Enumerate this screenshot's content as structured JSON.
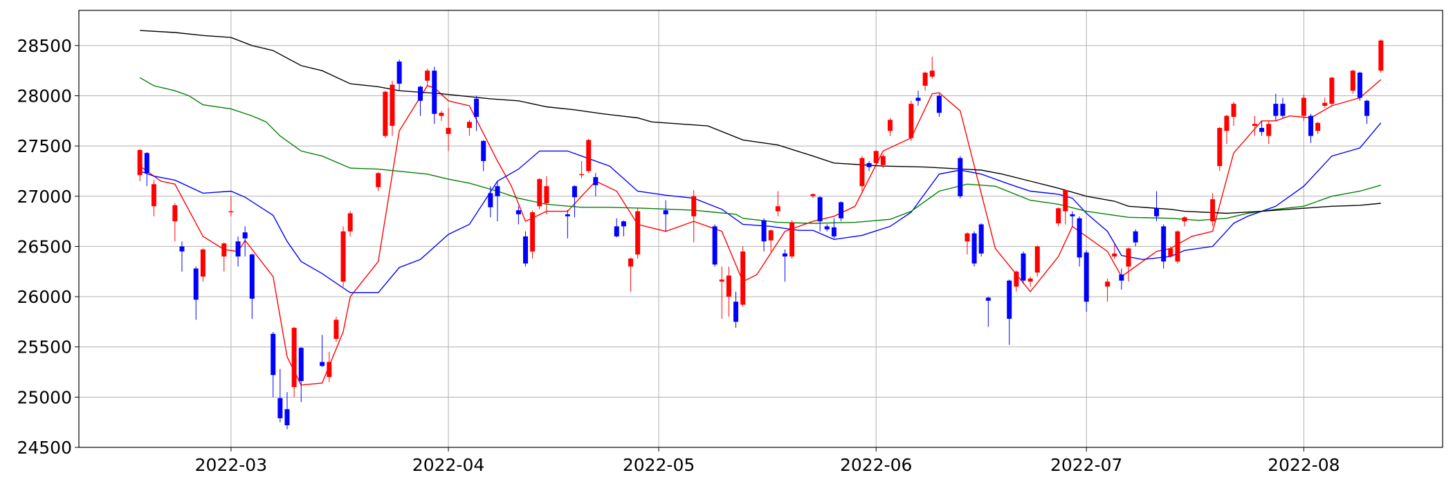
{
  "chart_data": {
    "type": "candlestick",
    "x": [
      47,
      48,
      49,
      52,
      53,
      55,
      56,
      59,
      60,
      61,
      62,
      63,
      66,
      67,
      68,
      69,
      70,
      73,
      74,
      75,
      76,
      77,
      81,
      82,
      83,
      84,
      87,
      88,
      89,
      90,
      91,
      94,
      95,
      96,
      97,
      98,
      101,
      102,
      103,
      104,
      105,
      108,
      109,
      110,
      111,
      112,
      115,
      116,
      117,
      118,
      122,
      126,
      129,
      130,
      131,
      132,
      133,
      136,
      137,
      138,
      139,
      140,
      143,
      144,
      145,
      146,
      147,
      150,
      151,
      152,
      153,
      154,
      157,
      158,
      159,
      160,
      161,
      164,
      165,
      166,
      167,
      168,
      171,
      172,
      173,
      174,
      175,
      178,
      179,
      180,
      181,
      182,
      185,
      186,
      187,
      188,
      189,
      192,
      193,
      194,
      195,
      196,
      200,
      201,
      202,
      203,
      206,
      207,
      208,
      209,
      210,
      213,
      214,
      215,
      216,
      217,
      220,
      221,
      222,
      224
    ],
    "open": [
      27210,
      27430,
      26900,
      26750,
      26500,
      26280,
      26200,
      26400,
      26840,
      26550,
      26640,
      26420,
      25630,
      24990,
      24880,
      25100,
      25490,
      25350,
      25200,
      25580,
      26150,
      26650,
      27090,
      27600,
      27700,
      28340,
      28090,
      28150,
      28250,
      27800,
      27620,
      27680,
      27970,
      27550,
      27030,
      27100,
      26860,
      26600,
      26450,
      26900,
      26930,
      26820,
      27100,
      27210,
      27250,
      27190,
      26700,
      26750,
      26300,
      26420,
      26860,
      26800,
      26700,
      26150,
      26000,
      25950,
      25920,
      26760,
      26560,
      26850,
      26430,
      26400,
      27000,
      26990,
      26700,
      26690,
      26940,
      27100,
      27330,
      27330,
      27310,
      27650,
      27580,
      27980,
      28100,
      28190,
      28000,
      27380,
      26550,
      26630,
      26720,
      25990,
      26160,
      26100,
      26430,
      26150,
      26240,
      26730,
      26850,
      26820,
      26780,
      26440,
      26100,
      26400,
      26220,
      26300,
      26650,
      26880,
      26700,
      26400,
      26350,
      26750,
      26750,
      27300,
      27650,
      27790,
      27700,
      27680,
      27600,
      27920,
      27920,
      27800,
      27800,
      27650,
      27900,
      27920,
      28050,
      28230,
      27950,
      28250
    ],
    "high": [
      27470,
      27440,
      27160,
      26930,
      26550,
      26300,
      26480,
      26540,
      27000,
      26600,
      26700,
      26430,
      25650,
      25280,
      25050,
      25700,
      25500,
      25620,
      25450,
      25800,
      26700,
      26850,
      27240,
      28050,
      28150,
      28360,
      28100,
      28270,
      28290,
      27850,
      27880,
      27760,
      28000,
      27560,
      27100,
      27150,
      26900,
      26650,
      26860,
      27180,
      27200,
      26860,
      27110,
      27350,
      27570,
      27230,
      26780,
      26760,
      26390,
      26880,
      26960,
      27060,
      26720,
      26300,
      26300,
      26050,
      26500,
      26780,
      26670,
      27050,
      26470,
      26760,
      27030,
      27000,
      26720,
      26780,
      26950,
      27400,
      27350,
      27460,
      27420,
      27780,
      27950,
      28050,
      28240,
      28390,
      28020,
      27400,
      26640,
      26650,
      26730,
      26000,
      26170,
      26260,
      26450,
      26200,
      26510,
      26890,
      27070,
      26850,
      26800,
      26460,
      26180,
      26520,
      26280,
      26490,
      26670,
      27050,
      26720,
      26500,
      26660,
      26800,
      27030,
      27690,
      27810,
      27940,
      27800,
      27750,
      27750,
      28020,
      27980,
      28010,
      27820,
      27740,
      27980,
      28190,
      28260,
      28240,
      27960,
      28560
    ],
    "low": [
      27150,
      27100,
      26800,
      26550,
      26250,
      25770,
      26150,
      26250,
      26800,
      26300,
      26400,
      25780,
      25000,
      24750,
      24680,
      25000,
      24950,
      25300,
      25150,
      25550,
      26100,
      26600,
      27050,
      27580,
      27600,
      28050,
      27800,
      28100,
      27720,
      27750,
      27450,
      27600,
      27650,
      27250,
      26790,
      26750,
      26720,
      26300,
      26380,
      26870,
      26820,
      26580,
      26790,
      27180,
      27230,
      27000,
      26590,
      26600,
      26050,
      26380,
      26650,
      26540,
      26300,
      25780,
      25800,
      25690,
      25900,
      26450,
      26450,
      26800,
      26150,
      26380,
      26980,
      26650,
      26650,
      26580,
      26750,
      27050,
      27250,
      27300,
      27280,
      27600,
      27550,
      27900,
      28050,
      28170,
      27790,
      26980,
      26420,
      26300,
      26400,
      25700,
      25520,
      26050,
      26130,
      26100,
      26200,
      26700,
      26720,
      26700,
      26300,
      25850,
      25950,
      26380,
      26070,
      26150,
      26500,
      26750,
      26280,
      26390,
      26330,
      26700,
      26700,
      27250,
      27520,
      27700,
      27600,
      27600,
      27520,
      27750,
      27780,
      27750,
      27530,
      27620,
      27880,
      27900,
      28020,
      27950,
      27720,
      28230
    ],
    "close": [
      27460,
      27230,
      27120,
      26910,
      26450,
      25970,
      26470,
      26530,
      26850,
      26400,
      26580,
      25980,
      25220,
      24790,
      24720,
      25690,
      25160,
      25310,
      25350,
      25770,
      26650,
      26830,
      27230,
      28040,
      28110,
      28120,
      27950,
      28250,
      27820,
      27830,
      27680,
      27740,
      27790,
      27350,
      26890,
      27000,
      26820,
      26330,
      26840,
      27170,
      27100,
      26800,
      26990,
      27220,
      27560,
      27110,
      26600,
      26700,
      26380,
      26850,
      26820,
      27000,
      26320,
      26170,
      26210,
      25750,
      26450,
      26550,
      26660,
      26900,
      26400,
      26740,
      27020,
      26750,
      26670,
      26600,
      26780,
      27380,
      27290,
      27450,
      27400,
      27760,
      27920,
      27950,
      28230,
      28250,
      27830,
      27000,
      26630,
      26330,
      26430,
      25960,
      25780,
      26250,
      26160,
      26180,
      26500,
      26880,
      27060,
      26800,
      26390,
      25950,
      26150,
      26430,
      26160,
      26480,
      26540,
      26800,
      26350,
      26480,
      26650,
      26790,
      26970,
      27680,
      27800,
      27920,
      27720,
      27640,
      27720,
      27800,
      27800,
      27980,
      27600,
      27730,
      27930,
      28180,
      28250,
      27980,
      27800,
      28550
    ],
    "up_color": "#ff0000",
    "down_color": "#0000ff",
    "lines": [
      {
        "color": "#ff0000",
        "x": [
          47,
          50,
          52,
          56,
          59,
          61,
          62,
          66,
          68,
          70,
          73,
          76,
          77,
          81,
          84,
          88,
          89,
          91,
          94,
          98,
          100,
          102,
          105,
          108,
          112,
          115,
          118,
          122,
          126,
          130,
          133,
          135,
          139,
          143,
          146,
          149,
          153,
          157,
          160,
          161,
          164,
          169,
          174,
          178,
          180,
          182,
          185,
          187,
          189,
          192,
          194,
          197,
          200,
          203,
          207,
          209,
          211,
          214,
          217,
          221,
          224
        ],
        "values": [
          27300,
          27150,
          27120,
          26600,
          26470,
          26450,
          26560,
          26200,
          25400,
          25120,
          25140,
          25650,
          26000,
          26350,
          27650,
          28100,
          28080,
          27950,
          27900,
          27350,
          27100,
          26750,
          26850,
          26850,
          27150,
          27050,
          26720,
          26650,
          26750,
          26650,
          26150,
          26220,
          26650,
          26750,
          26800,
          26900,
          27450,
          27580,
          28020,
          28030,
          27850,
          26480,
          26050,
          26400,
          26700,
          26600,
          26450,
          26200,
          26300,
          26450,
          26480,
          26600,
          26650,
          27430,
          27750,
          27750,
          27800,
          27780,
          27900,
          27980,
          28160
        ]
      },
      {
        "color": "#0000ff",
        "x": [
          47,
          49,
          52,
          56,
          60,
          62,
          66,
          68,
          70,
          73,
          77,
          81,
          84,
          87,
          91,
          94,
          98,
          101,
          104,
          108,
          110,
          114,
          118,
          122,
          126,
          130,
          133,
          137,
          141,
          143,
          146,
          150,
          154,
          157,
          161,
          164,
          167,
          171,
          174,
          178,
          180,
          182,
          185,
          187,
          190,
          194,
          196,
          200,
          203,
          205,
          209,
          211,
          213,
          217,
          221,
          224
        ],
        "values": [
          27250,
          27200,
          27160,
          27030,
          27050,
          26990,
          26810,
          26550,
          26350,
          26230,
          26040,
          26040,
          26290,
          26370,
          26620,
          26720,
          27150,
          27270,
          27450,
          27450,
          27400,
          27300,
          27050,
          27010,
          26980,
          26870,
          26720,
          26700,
          26660,
          26660,
          26570,
          26610,
          26700,
          26840,
          27220,
          27260,
          27220,
          27120,
          27050,
          27020,
          26980,
          26830,
          26650,
          26410,
          26370,
          26400,
          26460,
          26500,
          26730,
          26800,
          26900,
          27000,
          27100,
          27400,
          27480,
          27730
        ]
      },
      {
        "color": "#008000",
        "x": [
          47,
          49,
          52,
          54,
          56,
          60,
          63,
          65,
          67,
          70,
          73,
          77,
          81,
          88,
          91,
          94,
          98,
          101,
          105,
          110,
          114,
          119,
          126,
          132,
          133,
          138,
          143,
          149,
          154,
          157,
          161,
          165,
          169,
          174,
          178,
          182,
          185,
          188,
          194,
          198,
          202,
          205,
          209,
          213,
          217,
          221,
          224
        ],
        "values": [
          28180,
          28100,
          28050,
          28000,
          27910,
          27870,
          27800,
          27740,
          27600,
          27450,
          27400,
          27280,
          27270,
          27220,
          27170,
          27130,
          27050,
          26980,
          26920,
          26890,
          26890,
          26880,
          26860,
          26820,
          26780,
          26740,
          26730,
          26740,
          26770,
          26850,
          27050,
          27120,
          27100,
          26960,
          26920,
          26850,
          26820,
          26790,
          26780,
          26760,
          26780,
          26830,
          26870,
          26900,
          27000,
          27050,
          27110
        ]
      },
      {
        "color": "#000000",
        "x": [
          47,
          52,
          56,
          60,
          63,
          66,
          70,
          73,
          77,
          81,
          84,
          90,
          97,
          101,
          105,
          109,
          113,
          118,
          120,
          128,
          133,
          138,
          143,
          146,
          153,
          159,
          167,
          170,
          174,
          178,
          182,
          186,
          188,
          194,
          196,
          202,
          207,
          209,
          213,
          217,
          221,
          224
        ],
        "values": [
          28650,
          28630,
          28600,
          28580,
          28500,
          28450,
          28300,
          28250,
          28120,
          28090,
          28050,
          28020,
          27970,
          27950,
          27890,
          27860,
          27820,
          27780,
          27740,
          27700,
          27560,
          27510,
          27400,
          27330,
          27300,
          27290,
          27260,
          27220,
          27150,
          27080,
          27000,
          26950,
          26900,
          26870,
          26850,
          26830,
          26850,
          26860,
          26880,
          26900,
          26910,
          26930
        ]
      }
    ],
    "xlim": [
      38.3,
      232.8
    ],
    "xticks": [
      {
        "value": 60,
        "label": "2022-03"
      },
      {
        "value": 91,
        "label": "2022-04"
      },
      {
        "value": 121,
        "label": "2022-05"
      },
      {
        "value": 152,
        "label": "2022-06"
      },
      {
        "value": 182,
        "label": "2022-07"
      },
      {
        "value": 213,
        "label": "2022-08"
      }
    ],
    "ylim": [
      24500,
      28850
    ],
    "yticks": [
      24500,
      25000,
      25500,
      26000,
      26500,
      27000,
      27500,
      28000,
      28500
    ],
    "grid": true
  }
}
